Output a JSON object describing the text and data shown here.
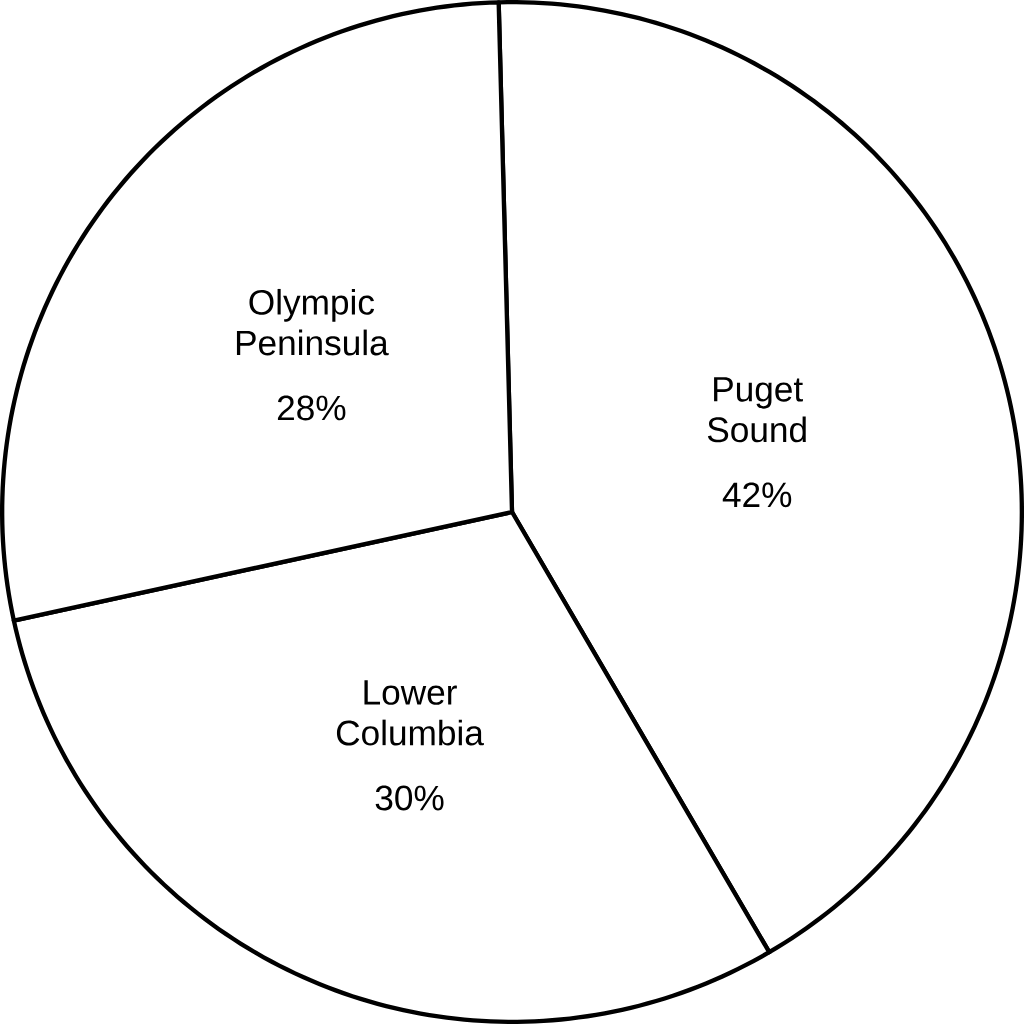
{
  "chart_data": {
    "type": "pie",
    "categories": [
      "Puget Sound",
      "Lower Columbia",
      "Olympic Peninsula"
    ],
    "values": [
      42,
      30,
      28
    ],
    "colors": [
      "#ffffff",
      "#ffffff",
      "#ffffff"
    ],
    "value_labels": [
      "42%",
      "30%",
      "28%"
    ]
  }
}
